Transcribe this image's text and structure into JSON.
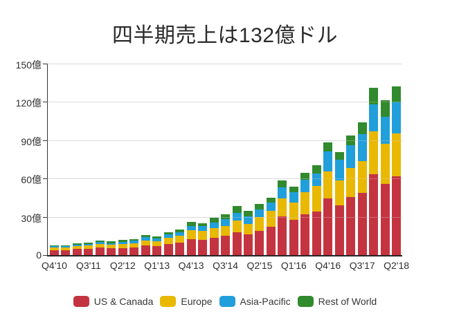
{
  "title": "四半期売上は132億ドル",
  "chart_data": {
    "type": "bar",
    "stacked": true,
    "unit": "億ドル (hundreds of millions USD)",
    "title": "四半期売上は132億ドル",
    "categories": [
      "Q4'10",
      "Q1'11",
      "Q2'11",
      "Q3'11",
      "Q4'11",
      "Q1'12",
      "Q2'12",
      "Q3'12",
      "Q4'12",
      "Q1'13",
      "Q2'13",
      "Q3'13",
      "Q4'13",
      "Q1'14",
      "Q2'14",
      "Q3'14",
      "Q4'14",
      "Q1'15",
      "Q2'15",
      "Q3'15",
      "Q4'15",
      "Q1'16",
      "Q2'16",
      "Q3'16",
      "Q4'16",
      "Q1'17",
      "Q2'17",
      "Q3'17",
      "Q4'17",
      "Q1'18",
      "Q2'18"
    ],
    "x_tick_labels": [
      "Q4'10",
      "Q3'11",
      "Q2'12",
      "Q1'13",
      "Q4'13",
      "Q3'14",
      "Q2'15",
      "Q1'16",
      "Q4'16",
      "Q3'17",
      "Q2'18"
    ],
    "x_tick_every": 3,
    "series": [
      {
        "name": "US & Canada",
        "color": "#c43440",
        "values": [
          4.0,
          4.0,
          4.7,
          5.0,
          5.8,
          5.3,
          5.5,
          6.0,
          7.6,
          7.3,
          8.9,
          10.0,
          12.4,
          11.8,
          13.5,
          15.0,
          17.8,
          16.2,
          19.2,
          22.2,
          30.5,
          27.5,
          31.9,
          34.0,
          44.5,
          39.0,
          45.5,
          48.5,
          63.5,
          56.0,
          62.0
        ]
      },
      {
        "name": "Europe",
        "color": "#e9b800",
        "values": [
          2.0,
          2.0,
          2.3,
          2.4,
          2.9,
          2.7,
          3.2,
          3.4,
          4.0,
          3.7,
          4.6,
          5.1,
          7.0,
          7.0,
          7.6,
          8.0,
          9.2,
          8.3,
          10.4,
          12.4,
          14.0,
          13.5,
          17.5,
          20.0,
          20.8,
          19.3,
          22.5,
          25.0,
          33.3,
          31.0,
          33.5
        ]
      },
      {
        "name": "Asia-Pacific",
        "color": "#219fdb",
        "values": [
          0.8,
          0.8,
          1.1,
          1.2,
          1.5,
          1.4,
          1.7,
          1.8,
          2.3,
          2.0,
          2.6,
          2.9,
          3.6,
          3.7,
          4.3,
          4.9,
          6.3,
          5.9,
          6.4,
          6.4,
          8.8,
          8.5,
          9.9,
          10.0,
          16.1,
          16.7,
          18.3,
          21.5,
          21.0,
          21.5,
          24.0
        ]
      },
      {
        "name": "Rest of World",
        "color": "#318a2d",
        "values": [
          0.6,
          0.6,
          0.9,
          0.9,
          1.1,
          1.2,
          1.4,
          1.5,
          1.9,
          1.6,
          2.0,
          2.2,
          2.9,
          2.6,
          3.6,
          4.1,
          5.2,
          4.4,
          4.2,
          4.2,
          5.1,
          4.3,
          5.1,
          6.2,
          6.7,
          5.5,
          7.4,
          9.0,
          13.0,
          12.7,
          12.8
        ]
      }
    ],
    "ylim": [
      0,
      150
    ],
    "y_tick_labels": [
      "0",
      "30億",
      "60億",
      "90億",
      "120億",
      "150億"
    ],
    "y_tick_values": [
      0,
      30,
      60,
      90,
      120,
      150
    ],
    "grid": true,
    "legend_position": "bottom"
  }
}
